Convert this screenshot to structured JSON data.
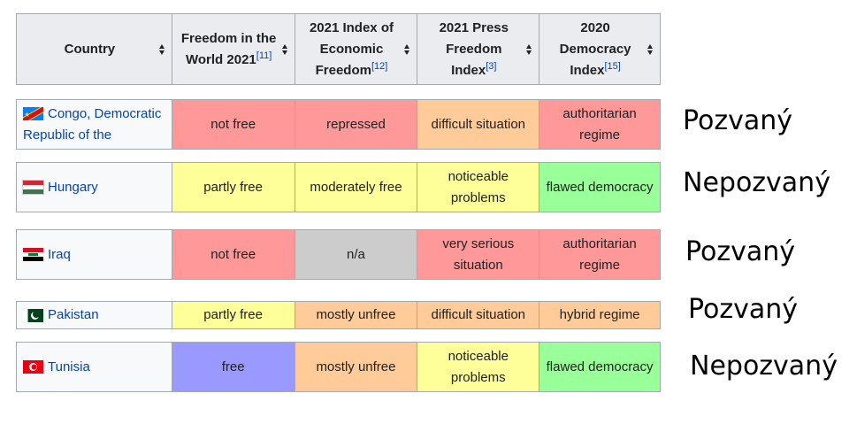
{
  "table": {
    "headers": [
      {
        "label": "Country",
        "ref": ""
      },
      {
        "label": "Freedom in the World 2021",
        "ref": "[11]"
      },
      {
        "label": "2021 Index of Economic Freedom",
        "ref": "[12]"
      },
      {
        "label": "2021 Press Freedom Index",
        "ref": "[3]"
      },
      {
        "label": "2020 Democracy Index",
        "ref": "[15]"
      }
    ],
    "rows": [
      {
        "country": "Congo, Democratic Republic of the",
        "flag": "flag-congo-drc-icon",
        "fiw": "not free",
        "ief": "repressed",
        "pfi": "difficult situation",
        "di": "authoritarian regime",
        "note": "Pozvaný"
      },
      {
        "country": "Hungary",
        "flag": "flag-hungary-icon",
        "fiw": "partly free",
        "ief": "moderately free",
        "pfi": "noticeable problems",
        "di": "flawed democracy",
        "note": "Nepozvaný"
      },
      {
        "country": "Iraq",
        "flag": "flag-iraq-icon",
        "fiw": "not free",
        "ief": "n/a",
        "pfi": "very serious situation",
        "di": "authoritarian regime",
        "note": "Pozvaný"
      },
      {
        "country": "Pakistan",
        "flag": "flag-pakistan-icon",
        "fiw": "partly free",
        "ief": "mostly unfree",
        "pfi": "difficult situation",
        "di": "hybrid regime",
        "note": "Pozvaný"
      },
      {
        "country": "Tunisia",
        "flag": "flag-tunisia-icon",
        "fiw": "free",
        "ief": "mostly unfree",
        "pfi": "noticeable problems",
        "di": "flawed democracy",
        "note": "Nepozvaný"
      }
    ]
  },
  "colors": {
    "not_free": "#ff9999",
    "partly_free": "#ffff99",
    "free": "#9999ff",
    "difficult": "#ffcc99",
    "flawed_democracy": "#99ff99",
    "na": "#cccccc",
    "header_bg": "#eaecf0",
    "link": "#0645ad"
  }
}
